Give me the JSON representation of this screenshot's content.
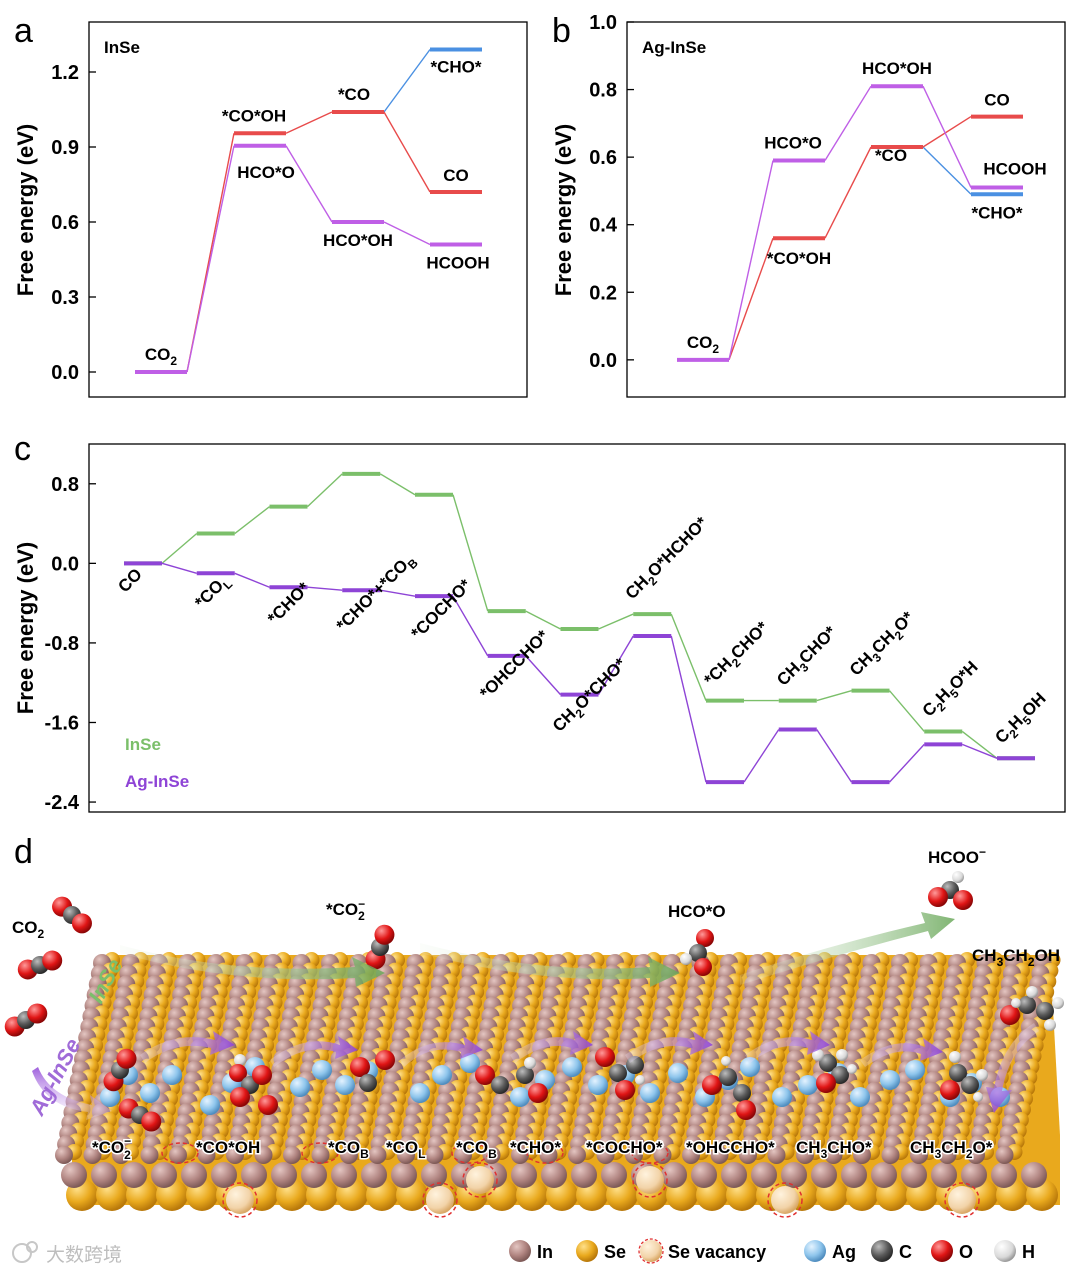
{
  "panels": {
    "a": "a",
    "b": "b",
    "c": "c",
    "d": "d"
  },
  "chart_data": [
    {
      "panel": "a",
      "type": "line",
      "title": "InSe",
      "xlabel": "",
      "ylabel": "Free energy (eV)",
      "ylim": [
        -0.1,
        1.4
      ],
      "yticks": [
        "0.0",
        "0.3",
        "0.6",
        "0.9",
        "1.2"
      ],
      "yticks_values": [
        0,
        0.3,
        0.6,
        0.9,
        1.2
      ],
      "grid": false,
      "states": [
        {
          "key": "co2",
          "step": 0,
          "y": 0.0,
          "label": "CO",
          "sub": "2",
          "color": "#bf5fe6"
        },
        {
          "key": "cooh",
          "step": 1,
          "y": 0.955,
          "label": "*CO*OH",
          "color": "#e84b4b"
        },
        {
          "key": "hcoo_1",
          "step": 1,
          "y": 0.905,
          "label": "HCO*O",
          "color": "#bf5fe6"
        },
        {
          "key": "co_ads",
          "step": 2,
          "y": 1.04,
          "label": "*CO",
          "color": "#e84b4b"
        },
        {
          "key": "hcooh_1",
          "step": 2,
          "y": 0.6,
          "label": "HCO*OH",
          "color": "#bf5fe6"
        },
        {
          "key": "cho",
          "step": 3,
          "y": 1.29,
          "label": "*CHO*",
          "color": "#4a90e2"
        },
        {
          "key": "co_g",
          "step": 3,
          "y": 0.72,
          "label": "CO",
          "color": "#e84b4b"
        },
        {
          "key": "hcooh",
          "step": 3,
          "y": 0.51,
          "label": "HCOOH",
          "color": "#bf5fe6"
        }
      ]
    },
    {
      "panel": "b",
      "type": "line",
      "title": "Ag-InSe",
      "xlabel": "",
      "ylabel": "Free energy (eV)",
      "ylim": [
        -0.11,
        1.0
      ],
      "yticks": [
        "0.0",
        "0.2",
        "0.4",
        "0.6",
        "0.8",
        "1.0"
      ],
      "yticks_values": [
        0,
        0.2,
        0.4,
        0.6,
        0.8,
        1.0
      ],
      "grid": false,
      "states": [
        {
          "key": "co2",
          "step": 0,
          "y": 0.0,
          "label": "CO",
          "sub": "2",
          "color": "#bf5fe6"
        },
        {
          "key": "hcoo_1",
          "step": 1,
          "y": 0.59,
          "label": "HCO*O",
          "color": "#bf5fe6"
        },
        {
          "key": "cooh",
          "step": 1,
          "y": 0.36,
          "label": "*CO*OH",
          "color": "#e84b4b"
        },
        {
          "key": "hcooh_1",
          "step": 2,
          "y": 0.81,
          "label": "HCO*OH",
          "color": "#bf5fe6"
        },
        {
          "key": "co_ads",
          "step": 2,
          "y": 0.63,
          "label": "*CO",
          "color": "#e84b4b"
        },
        {
          "key": "co_g",
          "step": 3,
          "y": 0.72,
          "label": "CO",
          "color": "#e84b4b"
        },
        {
          "key": "hcooh",
          "step": 3,
          "y": 0.51,
          "label": "HCOOH",
          "color": "#bf5fe6"
        },
        {
          "key": "cho",
          "step": 3,
          "y": 0.49,
          "label": "*CHO*",
          "color": "#4a90e2"
        }
      ]
    },
    {
      "panel": "c",
      "type": "line",
      "xlabel": "",
      "ylabel": "Free energy (eV)",
      "ylim": [
        -2.5,
        1.2
      ],
      "yticks": [
        "-2.4",
        "-1.6",
        "-0.8",
        "0.0",
        "0.8"
      ],
      "yticks_values": [
        -2.4,
        -1.6,
        -0.8,
        0.0,
        0.8
      ],
      "grid": false,
      "legend_position": "bottom-left",
      "series": [
        {
          "name": "InSe",
          "color": "#7bbf6a",
          "values": [
            0.0,
            0.3,
            0.57,
            0.9,
            0.69,
            -0.48,
            -0.66,
            -0.51,
            -1.38,
            -1.38,
            -1.28,
            -1.69,
            -1.96
          ]
        },
        {
          "name": "Ag-InSe",
          "color": "#8e44d6",
          "values": [
            0.0,
            -0.1,
            -0.24,
            -0.27,
            -0.33,
            -0.93,
            -1.32,
            -0.73,
            -2.2,
            -1.67,
            -2.2,
            -1.82,
            -1.96
          ]
        }
      ],
      "labels": [
        {
          "base": "CO",
          "tail": ""
        },
        {
          "base": "*CO",
          "sub": "L",
          "tail": ""
        },
        {
          "base": "*CHO*",
          "tail": ""
        },
        {
          "base": "*CHO*+*CO",
          "sub": "B",
          "tail": ""
        },
        {
          "base": "*COCHO*",
          "tail": ""
        },
        {
          "base": "*OHCCHO*",
          "tail": ""
        },
        {
          "base": "CH",
          "sub": "2",
          "tail": "O*CHO*"
        },
        {
          "base": "CH",
          "sub": "2",
          "tail": "O*HCHO*"
        },
        {
          "base": "*CH",
          "sub": "2",
          "tail": "CHO*"
        },
        {
          "base": "CH",
          "sub": "3",
          "tail": "CHO*"
        },
        {
          "base": "CH",
          "sub": "3",
          "tail": "CH",
          "sub2": "2",
          "tail2": "O*"
        },
        {
          "base": "C",
          "sub": "2",
          "tail": "H",
          "sub2": "5",
          "tail2": "O*H"
        },
        {
          "base": "C",
          "sub": "2",
          "tail": "H",
          "sub2": "5",
          "tail2": "OH"
        }
      ]
    }
  ],
  "panel_d": {
    "molecules_top": {
      "co2": "CO",
      "co2_sub": "2",
      "co2_ads": "*CO",
      "co2_ads_sub": "2",
      "co2_ads_sup": "−",
      "hcoo_star": "HCO*O",
      "hcoo_minus": "HCOO",
      "hcoo_minus_sup": "−",
      "ethanol": "CH",
      "ethanol_parts": [
        "CH",
        "3",
        "CH",
        "2",
        "OH"
      ]
    },
    "side_labels": {
      "inse": "InSe",
      "aginse": "Ag-InSe"
    },
    "intermediates": [
      {
        "text": "*CO",
        "sub": "2",
        "sup": "−"
      },
      {
        "text": "*CO*OH"
      },
      {
        "text": "*CO",
        "sub": "B"
      },
      {
        "text": "*CO",
        "sub": "L"
      },
      {
        "text": "*CO",
        "sub": "B"
      },
      {
        "text": "*CHO*"
      },
      {
        "text": "*COCHO*"
      },
      {
        "text": "*OHCCHO*"
      },
      {
        "text": "CH",
        "sub": "3",
        "tail": "CHO*"
      },
      {
        "text": "CH",
        "sub": "3",
        "tail": "CH",
        "sub2": "2",
        "tail2": "O*"
      }
    ],
    "legend": [
      {
        "label": "In",
        "color": "#b98a86"
      },
      {
        "label": "Se",
        "color": "#e9a91d"
      },
      {
        "label": "Se vacancy",
        "color": "#f2d3a8"
      },
      {
        "label": "Ag",
        "color": "#8ec5ec"
      },
      {
        "label": "C",
        "color": "#5a5a5a"
      },
      {
        "label": "O",
        "color": "#e01515"
      },
      {
        "label": "H",
        "color": "#e8e8e8"
      }
    ],
    "watermark": "大数跨境"
  }
}
